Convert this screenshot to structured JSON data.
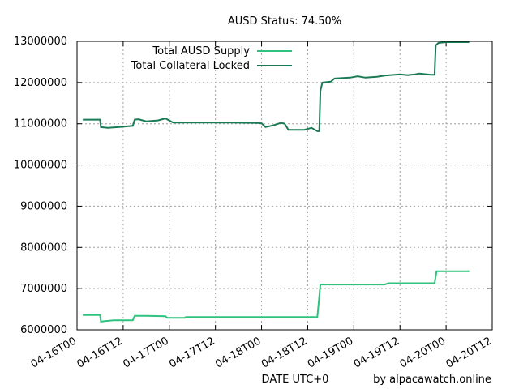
{
  "chart_data": {
    "type": "line",
    "title": "AUSD Status: 74.50%",
    "xlabel": "DATE UTC+0",
    "credit": "by alpacawatch.online",
    "ylabel": "",
    "x_range_hours": [
      0,
      108
    ],
    "ylim": [
      6000000,
      13000000
    ],
    "y_ticks": [
      6000000,
      7000000,
      8000000,
      9000000,
      10000000,
      11000000,
      12000000,
      13000000
    ],
    "y_tick_labels": [
      "6000000",
      "7000000",
      "8000000",
      "9000000",
      "10000000",
      "11000000",
      "12000000",
      "13000000"
    ],
    "x_ticks_hours": [
      0,
      12,
      24,
      36,
      48,
      60,
      72,
      84,
      96,
      108
    ],
    "x_tick_labels": [
      "04-16T00",
      "04-16T12",
      "04-17T00",
      "04-17T12",
      "04-18T00",
      "04-18T12",
      "04-19T00",
      "04-19T12",
      "04-20T00",
      "04-20T12"
    ],
    "grid": true,
    "legend_position": "top-right",
    "series": [
      {
        "name": "Total AUSD Supply",
        "color": "#2ec27e",
        "points": [
          [
            1.5,
            6360000
          ],
          [
            6,
            6360000
          ],
          [
            6.2,
            6200000
          ],
          [
            9.5,
            6230000
          ],
          [
            14.5,
            6230000
          ],
          [
            15,
            6340000
          ],
          [
            18,
            6340000
          ],
          [
            23,
            6330000
          ],
          [
            23.5,
            6290000
          ],
          [
            28,
            6290000
          ],
          [
            28.3,
            6310000
          ],
          [
            61,
            6310000
          ],
          [
            62.5,
            6310000
          ],
          [
            63.3,
            7100000
          ],
          [
            68,
            7100000
          ],
          [
            80,
            7100000
          ],
          [
            81,
            7130000
          ],
          [
            92,
            7130000
          ],
          [
            93,
            7130000
          ],
          [
            93.5,
            7420000
          ],
          [
            102,
            7420000
          ]
        ]
      },
      {
        "name": "Total Collateral Locked",
        "color": "#1a7a55",
        "points": [
          [
            1.5,
            11100000
          ],
          [
            6,
            11100000
          ],
          [
            6.2,
            10920000
          ],
          [
            8,
            10900000
          ],
          [
            11,
            10920000
          ],
          [
            14.5,
            10950000
          ],
          [
            15,
            11100000
          ],
          [
            16,
            11110000
          ],
          [
            18,
            11060000
          ],
          [
            21,
            11080000
          ],
          [
            23,
            11130000
          ],
          [
            25,
            11030000
          ],
          [
            30,
            11030000
          ],
          [
            40,
            11030000
          ],
          [
            47,
            11020000
          ],
          [
            48,
            11010000
          ],
          [
            49,
            10920000
          ],
          [
            51,
            10960000
          ],
          [
            53,
            11020000
          ],
          [
            54,
            11000000
          ],
          [
            55,
            10850000
          ],
          [
            59,
            10850000
          ],
          [
            61,
            10900000
          ],
          [
            62.5,
            10820000
          ],
          [
            63,
            10820000
          ],
          [
            63.3,
            11800000
          ],
          [
            63.8,
            12000000
          ],
          [
            66,
            12020000
          ],
          [
            67,
            12100000
          ],
          [
            71,
            12120000
          ],
          [
            73,
            12150000
          ],
          [
            75,
            12120000
          ],
          [
            78,
            12140000
          ],
          [
            80,
            12170000
          ],
          [
            84,
            12200000
          ],
          [
            86,
            12180000
          ],
          [
            88,
            12200000
          ],
          [
            89,
            12220000
          ],
          [
            92,
            12190000
          ],
          [
            93,
            12190000
          ],
          [
            93.3,
            12900000
          ],
          [
            94,
            12960000
          ],
          [
            96,
            12980000
          ],
          [
            102,
            12980000
          ]
        ]
      }
    ]
  }
}
